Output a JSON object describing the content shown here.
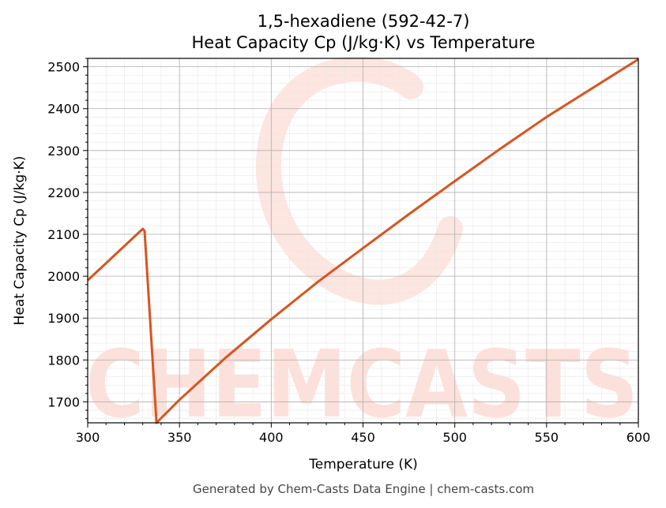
{
  "chart_data": {
    "type": "line",
    "title": "1,5-hexadiene (592-42-7)",
    "subtitle": "Heat Capacity Cp (J/kg·K) vs Temperature",
    "xlabel": "Temperature (K)",
    "ylabel": "Heat Capacity Cp (J/kg·K)",
    "xlim": [
      300,
      600
    ],
    "ylim": [
      1650,
      2520
    ],
    "xticks": [
      300,
      350,
      400,
      450,
      500,
      550,
      600
    ],
    "yticks": [
      1700,
      1800,
      1900,
      2000,
      2100,
      2200,
      2300,
      2400,
      2500
    ],
    "grid": true,
    "legend": "none",
    "series": [
      {
        "color": "#d9541e",
        "x": [
          300,
          330,
          331,
          337.5,
          350,
          375,
          400,
          425,
          450,
          475,
          500,
          525,
          550,
          575,
          600
        ],
        "y": [
          1990,
          2113,
          2108,
          1650,
          1705,
          1805,
          1897,
          1985,
          2067,
          2148,
          2227,
          2305,
          2380,
          2449,
          2518
        ]
      }
    ]
  },
  "footer": "Generated by Chem-Casts Data Engine | chem-casts.com",
  "watermark": {
    "text": "CHEMCASTS",
    "color": "#fde0da"
  }
}
